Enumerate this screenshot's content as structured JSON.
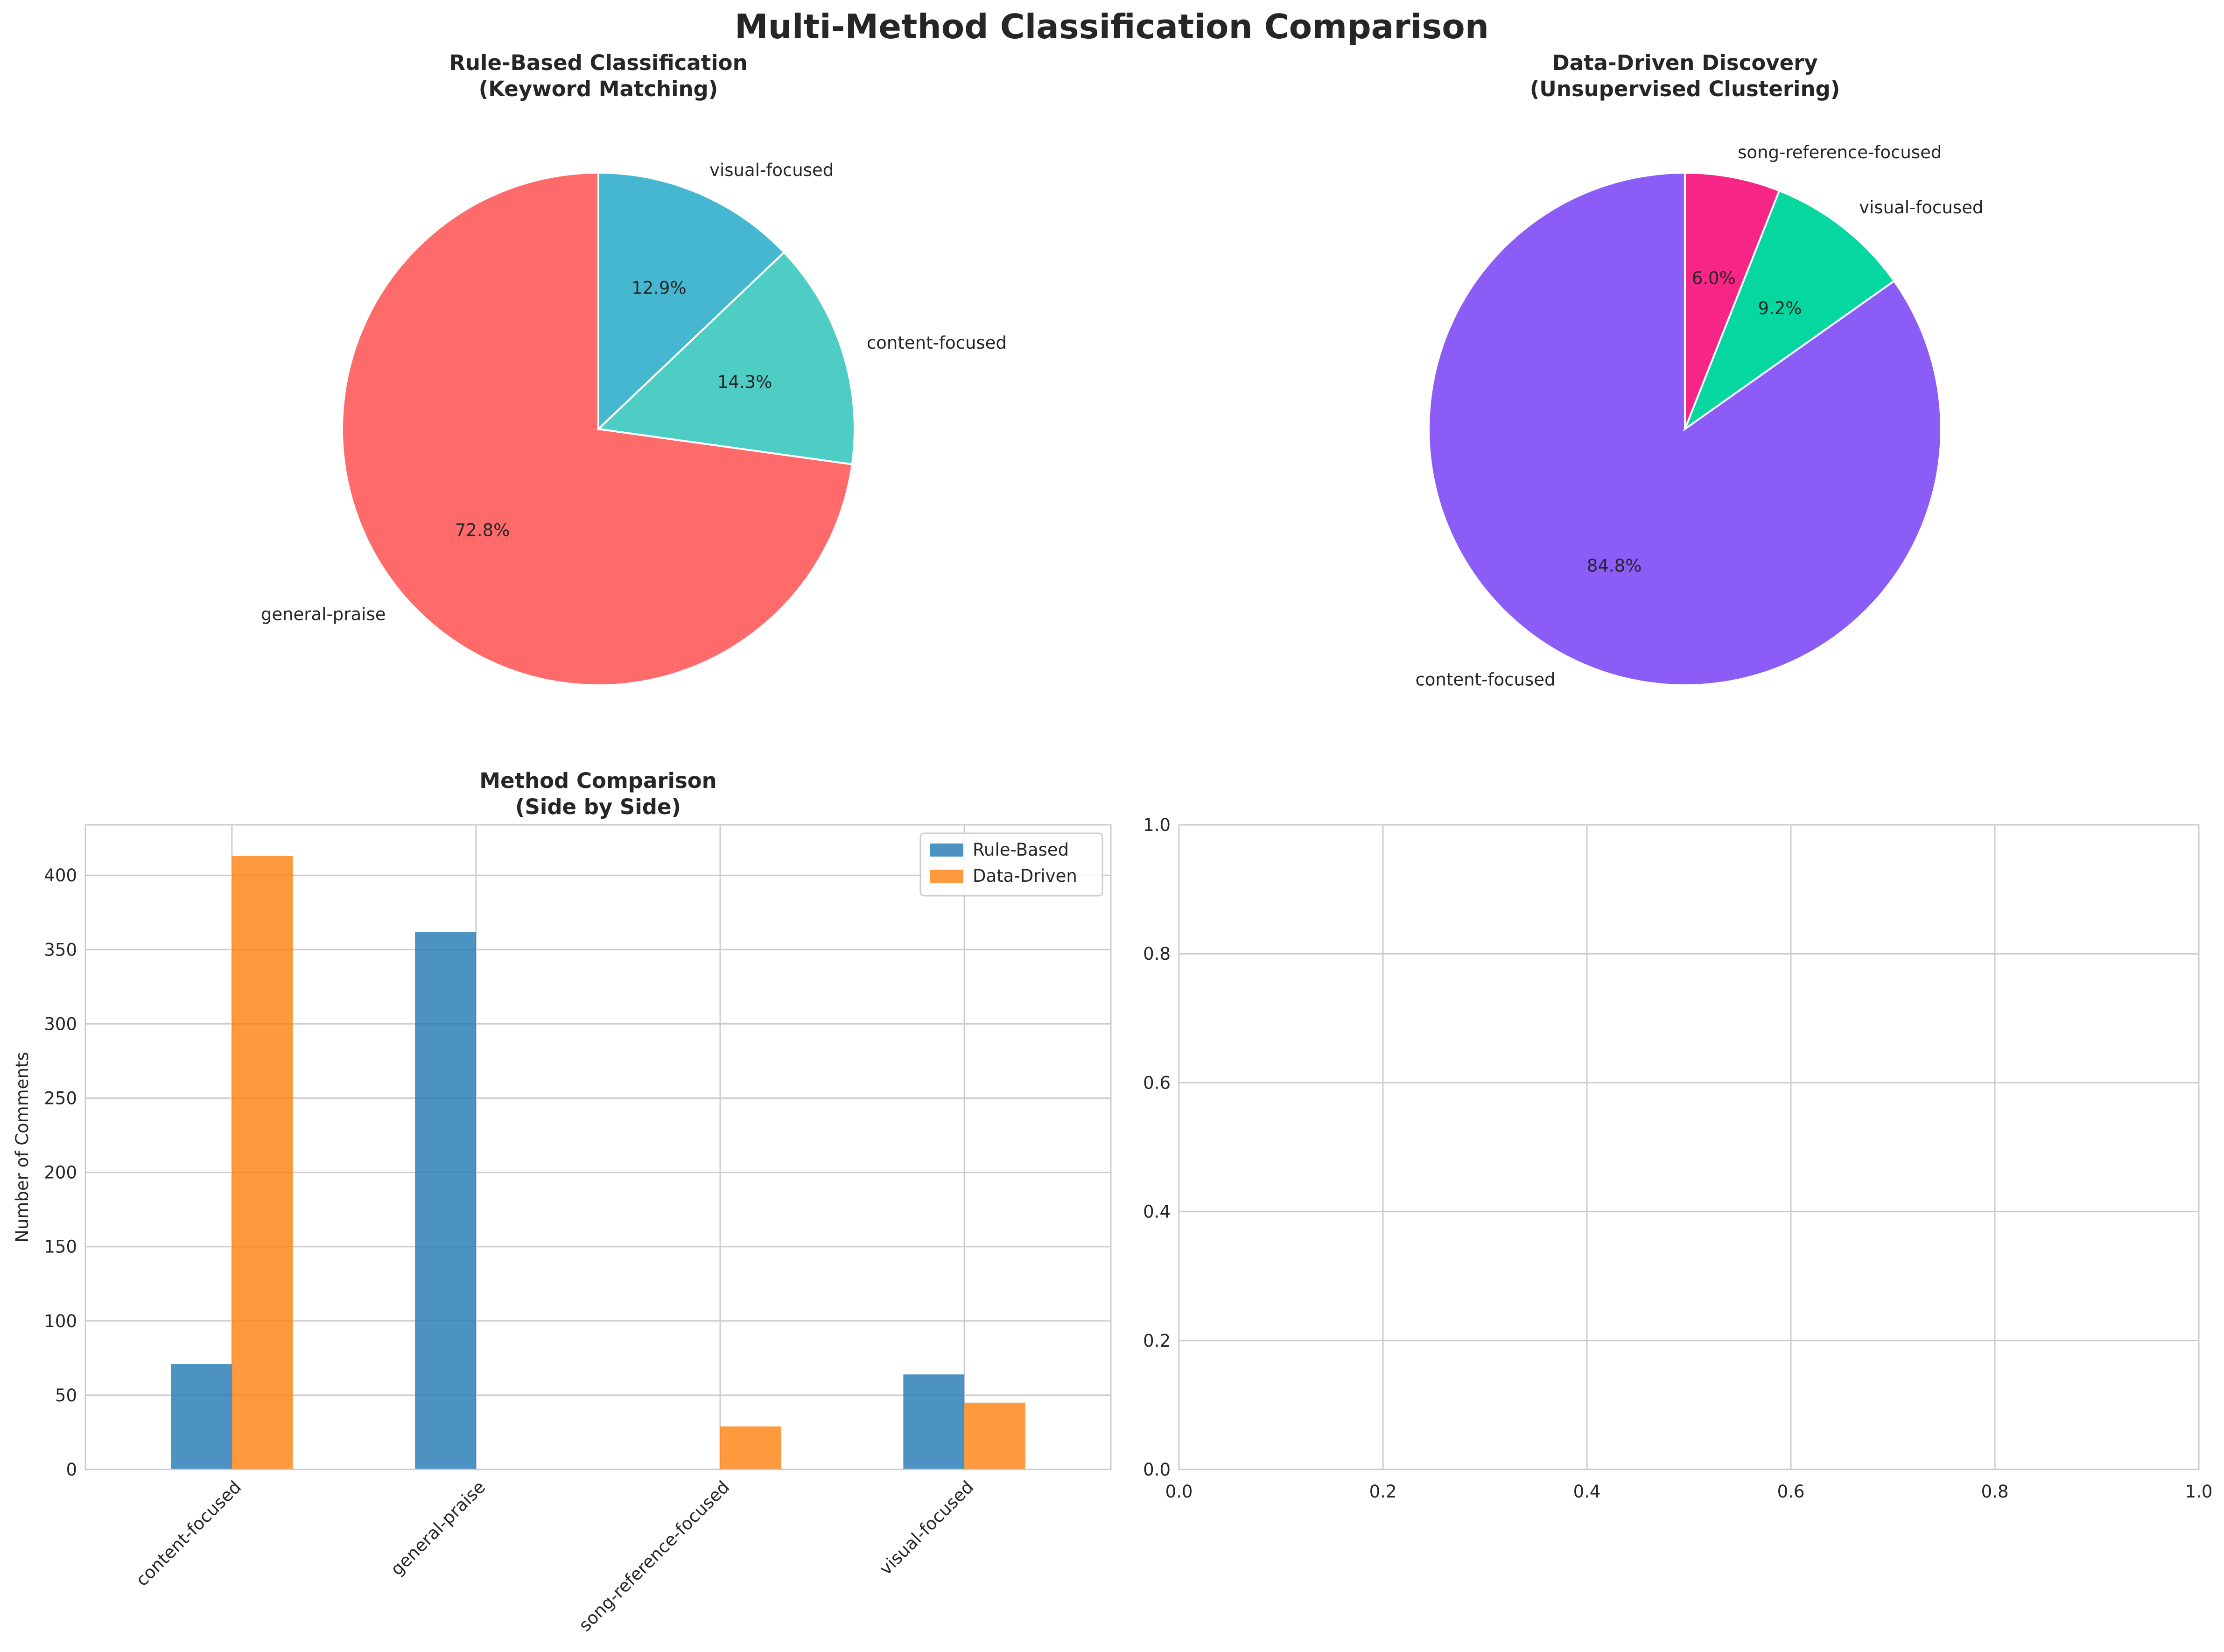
{
  "figure": {
    "suptitle": "Multi-Method Classification Comparison"
  },
  "chart_data": [
    {
      "type": "pie",
      "title": "Rule-Based Classification\n(Keyword Matching)",
      "labels": [
        "general-praise",
        "content-focused",
        "visual-focused"
      ],
      "values": [
        72.8,
        14.3,
        12.9
      ],
      "percent_labels": [
        "72.8%",
        "14.3%",
        "12.9%"
      ],
      "colors": [
        "#ff6b6b",
        "#4ecdc4",
        "#45b7d1"
      ],
      "start_angle_deg": 90
    },
    {
      "type": "pie",
      "title": "Data-Driven Discovery\n(Unsupervised Clustering)",
      "labels": [
        "content-focused",
        "visual-focused",
        "song-reference-focused"
      ],
      "values": [
        84.8,
        9.2,
        6.0
      ],
      "percent_labels": [
        "84.8%",
        "9.2%",
        "6.0%"
      ],
      "colors": [
        "#8b5cf6",
        "#06d6a0",
        "#f72585"
      ],
      "start_angle_deg": 90
    },
    {
      "type": "bar",
      "title": "Method Comparison\n(Side by Side)",
      "categories": [
        "content-focused",
        "general-praise",
        "song-reference-focused",
        "visual-focused"
      ],
      "series": [
        {
          "name": "Rule-Based",
          "values": [
            71,
            362,
            0,
            64
          ],
          "color": "#1f77b4"
        },
        {
          "name": "Data-Driven",
          "values": [
            413,
            0,
            29,
            45
          ],
          "color": "#ff7f0e"
        }
      ],
      "xlabel": "",
      "ylabel": "Number of Comments",
      "ylim": [
        0,
        434
      ],
      "yticks": [
        0,
        50,
        100,
        150,
        200,
        250,
        300,
        350,
        400
      ],
      "grid": true,
      "legend_position": "top-right"
    },
    {
      "type": "empty-axes",
      "xlim": [
        0,
        1
      ],
      "ylim": [
        0,
        1
      ],
      "xticks": [
        "0.0",
        "0.2",
        "0.4",
        "0.6",
        "0.8",
        "1.0"
      ],
      "yticks": [
        "0.0",
        "0.2",
        "0.4",
        "0.6",
        "0.8",
        "1.0"
      ],
      "grid": true
    }
  ]
}
